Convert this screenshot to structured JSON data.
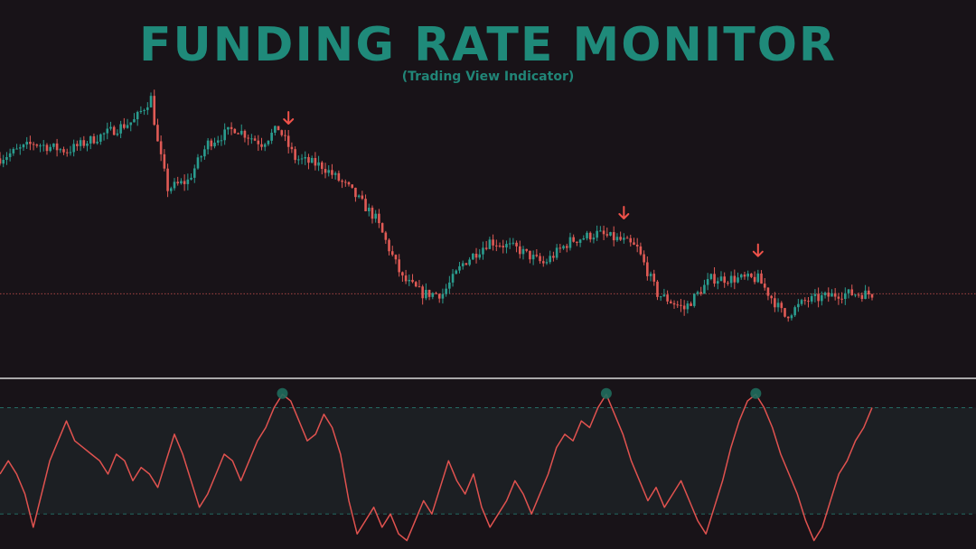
{
  "header": {
    "title": "FUNDING RATE MONITOR",
    "subtitle": "(Trading View Indicator)"
  },
  "colors": {
    "background": "#181318",
    "title": "#1f8a7a",
    "bull": "#2a9d8f",
    "bear": "#e05a55",
    "arrow": "#f0524a",
    "oscillator_line": "#e0524f",
    "oscillator_zone": "#1c1f23",
    "divider": "#d9d9d9",
    "peak_marker": "#1f6b5c"
  },
  "chart_data": [
    {
      "type": "candlestick",
      "title": "",
      "xlabel": "",
      "ylabel": "",
      "grid": false,
      "reference_line": 104,
      "ylim": [
        96,
        132
      ],
      "x_range": [
        0,
        260
      ],
      "trend": [
        [
          0,
          122
        ],
        [
          10,
          124
        ],
        [
          20,
          123
        ],
        [
          30,
          125
        ],
        [
          40,
          127
        ],
        [
          45,
          130
        ],
        [
          47,
          124
        ],
        [
          50,
          118
        ],
        [
          56,
          119
        ],
        [
          62,
          124
        ],
        [
          70,
          126
        ],
        [
          78,
          124
        ],
        [
          83,
          126
        ],
        [
          88,
          122
        ],
        [
          96,
          121
        ],
        [
          104,
          118
        ],
        [
          112,
          114
        ],
        [
          120,
          106
        ],
        [
          126,
          104
        ],
        [
          132,
          104
        ],
        [
          138,
          108
        ],
        [
          146,
          111
        ],
        [
          154,
          110
        ],
        [
          162,
          108
        ],
        [
          170,
          111
        ],
        [
          178,
          112
        ],
        [
          186,
          111
        ],
        [
          190,
          110
        ],
        [
          196,
          104
        ],
        [
          204,
          102
        ],
        [
          212,
          106
        ],
        [
          220,
          106
        ],
        [
          226,
          106
        ],
        [
          234,
          101
        ],
        [
          240,
          103
        ],
        [
          250,
          104
        ],
        [
          258,
          104
        ]
      ],
      "down_arrows_at": [
        86,
        186,
        226
      ]
    },
    {
      "type": "line",
      "title": "",
      "xlabel": "",
      "ylabel": "",
      "grid": false,
      "ylim": [
        -1.3,
        1.2
      ],
      "upper_band": 0.8,
      "lower_band": -0.8,
      "x_range": [
        0,
        260
      ],
      "values": [
        -0.2,
        0.0,
        -0.2,
        -0.5,
        -1.0,
        -0.5,
        0.0,
        0.3,
        0.6,
        0.3,
        0.2,
        0.1,
        0.0,
        -0.2,
        0.1,
        0.0,
        -0.3,
        -0.1,
        -0.2,
        -0.4,
        0.0,
        0.4,
        0.1,
        -0.3,
        -0.7,
        -0.5,
        -0.2,
        0.1,
        0.0,
        -0.3,
        0.0,
        0.3,
        0.5,
        0.8,
        1.0,
        0.9,
        0.6,
        0.3,
        0.4,
        0.7,
        0.5,
        0.1,
        -0.6,
        -1.1,
        -0.9,
        -0.7,
        -1.0,
        -0.8,
        -1.1,
        -1.2,
        -0.9,
        -0.6,
        -0.8,
        -0.4,
        0.0,
        -0.3,
        -0.5,
        -0.2,
        -0.7,
        -1.0,
        -0.8,
        -0.6,
        -0.3,
        -0.5,
        -0.8,
        -0.5,
        -0.2,
        0.2,
        0.4,
        0.3,
        0.6,
        0.5,
        0.8,
        1.0,
        0.7,
        0.4,
        0.0,
        -0.3,
        -0.6,
        -0.4,
        -0.7,
        -0.5,
        -0.3,
        -0.6,
        -0.9,
        -1.1,
        -0.7,
        -0.3,
        0.2,
        0.6,
        0.9,
        1.0,
        0.8,
        0.5,
        0.1,
        -0.2,
        -0.5,
        -0.9,
        -1.2,
        -1.0,
        -0.6,
        -0.2,
        0.0,
        0.3,
        0.5,
        0.8
      ]
    }
  ]
}
